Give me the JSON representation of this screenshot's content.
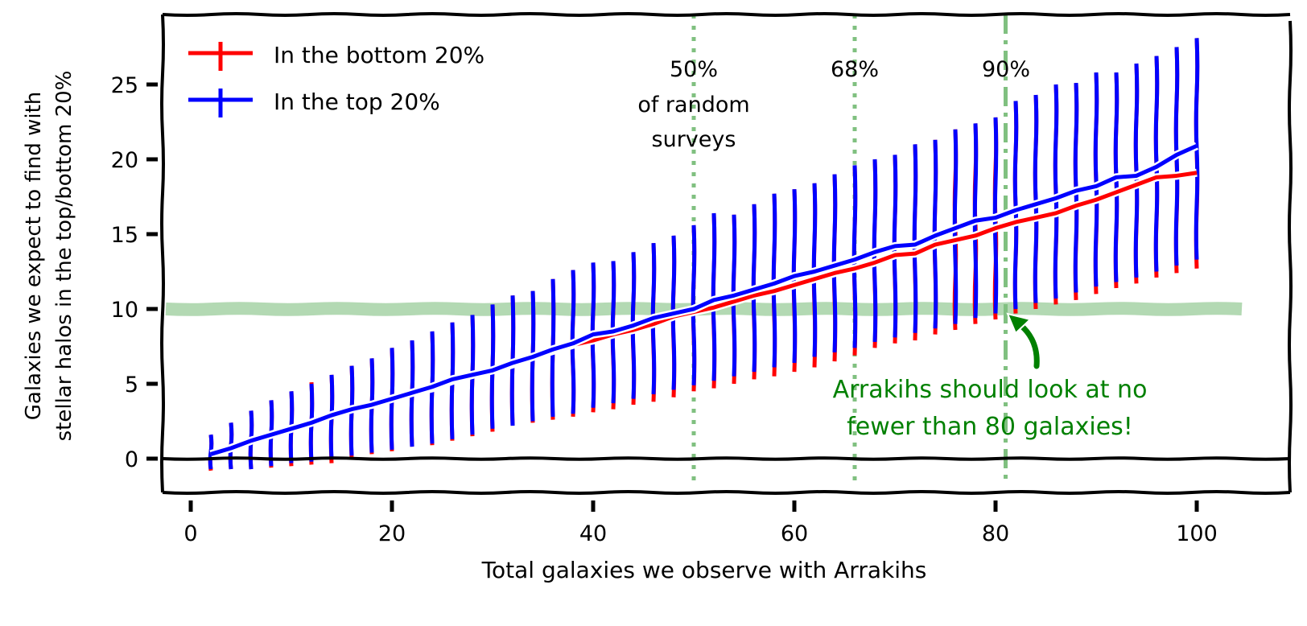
{
  "chart_data": {
    "type": "errorbar-line",
    "title": "",
    "xlabel": "Total galaxies we observe with Arrakihs",
    "ylabel_lines": [
      "Galaxies we expect to find with",
      "stellar halos in the top/bottom 20%"
    ],
    "xlim": [
      -3,
      105
    ],
    "ylim": [
      -2.3,
      29.5
    ],
    "xticks": [
      0,
      20,
      40,
      60,
      80,
      100
    ],
    "yticks": [
      0,
      5,
      10,
      15,
      20,
      25
    ],
    "grid": false,
    "legend_position": "top-left",
    "x": [
      2,
      4,
      6,
      8,
      10,
      12,
      14,
      16,
      18,
      20,
      22,
      24,
      26,
      28,
      30,
      32,
      34,
      36,
      38,
      40,
      42,
      44,
      46,
      48,
      50,
      52,
      54,
      56,
      58,
      60,
      62,
      64,
      66,
      68,
      70,
      72,
      74,
      76,
      78,
      80,
      82,
      84,
      86,
      88,
      90,
      92,
      94,
      96,
      98,
      100
    ],
    "series": [
      {
        "name": "In the bottom 20%",
        "color": "#ff0000",
        "mean": [
          0.3,
          0.7,
          1.2,
          1.6,
          2.0,
          2.4,
          2.9,
          3.3,
          3.6,
          4.0,
          4.4,
          4.7,
          5.2,
          5.6,
          5.9,
          6.3,
          6.8,
          7.2,
          7.6,
          7.9,
          8.3,
          8.6,
          9.0,
          9.5,
          9.8,
          10.1,
          10.5,
          10.9,
          11.2,
          11.6,
          12.0,
          12.4,
          12.7,
          13.1,
          13.6,
          13.7,
          14.3,
          14.6,
          14.9,
          15.4,
          15.8,
          16.1,
          16.4,
          16.9,
          17.3,
          17.8,
          18.3,
          18.8,
          18.9,
          19.1
        ],
        "low": [
          -0.8,
          -0.7,
          -0.7,
          -0.6,
          -0.5,
          -0.4,
          -0.3,
          0.0,
          0.3,
          0.5,
          0.8,
          0.9,
          1.2,
          1.5,
          1.8,
          2.2,
          2.4,
          2.6,
          2.8,
          3.1,
          3.3,
          3.6,
          3.8,
          4.1,
          4.5,
          4.7,
          5.0,
          5.3,
          5.5,
          5.8,
          6.1,
          6.5,
          6.9,
          7.4,
          7.7,
          7.9,
          8.3,
          8.6,
          9.0,
          9.3,
          9.7,
          10.0,
          10.3,
          10.6,
          11.0,
          11.4,
          11.7,
          12.1,
          12.4,
          12.7
        ],
        "high": [
          1.6,
          2.4,
          3.2,
          3.9,
          4.5,
          5.1,
          5.6,
          6.2,
          6.7,
          7.4,
          7.9,
          8.5,
          9.1,
          9.6,
          10.3,
          10.9,
          11.2,
          12.0,
          12.6,
          13.1,
          13.2,
          13.8,
          14.4,
          14.9,
          15.6,
          16.4,
          16.3,
          17.0,
          17.7,
          18.0,
          18.4,
          19.0,
          19.6,
          20.0,
          20.3,
          21.0,
          21.3,
          22.0,
          22.4,
          22.8,
          23.9,
          24.3,
          25.0,
          25.1,
          25.8,
          25.8,
          26.4,
          26.9,
          27.5,
          28.1
        ]
      },
      {
        "name": "In the top 20%",
        "color": "#0000ff",
        "mean": [
          0.3,
          0.7,
          1.2,
          1.6,
          2.0,
          2.4,
          2.9,
          3.3,
          3.6,
          4.0,
          4.4,
          4.8,
          5.3,
          5.6,
          5.9,
          6.4,
          6.8,
          7.3,
          7.7,
          8.3,
          8.5,
          8.9,
          9.4,
          9.7,
          10.0,
          10.6,
          10.9,
          11.3,
          11.7,
          12.2,
          12.5,
          12.9,
          13.3,
          13.8,
          14.2,
          14.3,
          14.9,
          15.4,
          15.9,
          16.1,
          16.6,
          17.0,
          17.4,
          17.9,
          18.2,
          18.8,
          18.9,
          19.5,
          20.3,
          20.9
        ],
        "low": [
          -0.7,
          -0.7,
          -0.7,
          -0.5,
          -0.3,
          -0.2,
          0.0,
          0.2,
          0.4,
          0.6,
          0.8,
          1.0,
          1.3,
          1.6,
          2.0,
          2.2,
          2.5,
          2.8,
          3.0,
          3.4,
          3.7,
          4.0,
          4.3,
          4.6,
          4.9,
          5.2,
          5.5,
          5.8,
          6.1,
          6.4,
          6.8,
          7.1,
          7.4,
          7.8,
          8.1,
          8.4,
          8.7,
          9.0,
          9.4,
          9.7,
          10.0,
          10.4,
          10.7,
          11.1,
          11.5,
          11.8,
          12.1,
          12.5,
          12.9,
          13.3
        ],
        "high": [
          1.6,
          2.4,
          3.2,
          3.9,
          4.5,
          5.0,
          5.6,
          6.2,
          6.7,
          7.4,
          7.9,
          8.5,
          9.1,
          9.6,
          10.3,
          10.9,
          11.2,
          12.0,
          12.6,
          13.1,
          13.2,
          13.8,
          14.4,
          14.9,
          15.6,
          16.4,
          16.3,
          17.0,
          17.7,
          18.0,
          18.4,
          19.0,
          19.6,
          20.0,
          20.3,
          21.0,
          21.3,
          22.0,
          22.4,
          22.8,
          23.9,
          24.3,
          25.0,
          25.1,
          25.8,
          25.8,
          26.4,
          26.9,
          27.5,
          28.1
        ]
      }
    ],
    "threshold_line": {
      "y": 10,
      "color": "#b3d9b3"
    },
    "vertical_lines": [
      {
        "x": 50,
        "label_lines": [
          "50%",
          "of random",
          "surveys"
        ],
        "style": "dotted",
        "color": "#80c080"
      },
      {
        "x": 66,
        "label_lines": [
          "68%"
        ],
        "style": "dotted",
        "color": "#80c080"
      },
      {
        "x": 81,
        "label_lines": [
          "90%"
        ],
        "style": "dashdot",
        "color": "#80c080"
      }
    ],
    "annotation": {
      "lines": [
        "Arrakihs should look at no",
        "fewer than 80 galaxies!"
      ],
      "color": "#008000",
      "points_to": {
        "x": 81,
        "y": 10
      }
    }
  }
}
